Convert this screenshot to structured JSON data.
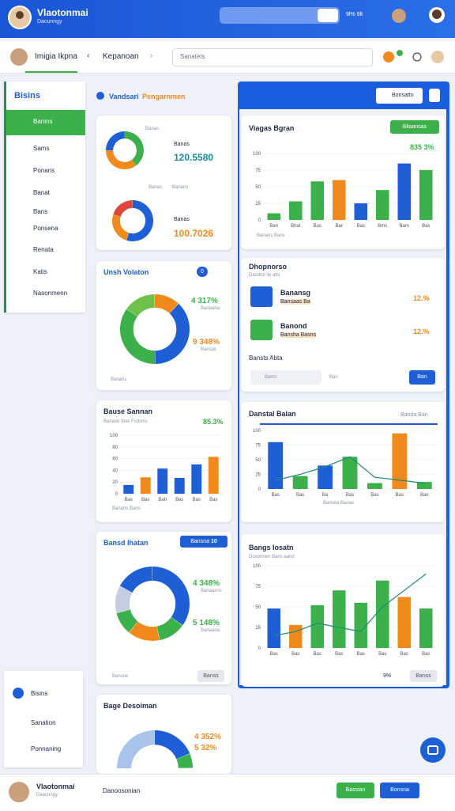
{
  "header": {
    "title": "Vlaotonmai",
    "subtitle": "Dacunngy",
    "search_button": "9l% 9lt"
  },
  "nav": {
    "user": "Imigia Ikpna",
    "breadcrumb": "Kepanoan",
    "search": "Sanatets"
  },
  "sidebar": {
    "title": "Bisins",
    "items": [
      "Banins",
      "Sams",
      "Ponaris",
      "Banat",
      "Bans",
      "Ponsena",
      "Renata",
      "Katis",
      "Nasonmenn"
    ],
    "bottom_items": [
      "Bisins",
      "Sanation",
      "Ponnaning"
    ]
  },
  "section": {
    "title": "Vandsari",
    "title_accent": "Pengarnmen",
    "search": "Bonsatto"
  },
  "cards": [
    {
      "caption": "Banas",
      "kpis": [
        {
          "label": "Banas",
          "value": "120.5580"
        },
        {
          "label": "Banas",
          "value": "100.7026"
        }
      ],
      "legend": [
        "Banas",
        "Banans"
      ],
      "charts": [
        {
          "type": "donut",
          "values": [
            40,
            35,
            25
          ],
          "colors": [
            "#3cb04a",
            "#f08a1c",
            "#1f5fd6"
          ]
        },
        {
          "type": "donut",
          "values": [
            55,
            25,
            20
          ],
          "colors": [
            "#1f5fd6",
            "#f08a1c",
            "#e0463a"
          ]
        }
      ]
    },
    {
      "title": "Unsh Volaton",
      "badge": "0",
      "kpis": [
        {
          "value": "4 317%",
          "label": "Banaana"
        },
        {
          "value": "9 348%",
          "label": "Bansas"
        }
      ],
      "legend": [
        "Banans"
      ],
      "charts": [
        {
          "type": "donut",
          "values": [
            12,
            38,
            35,
            15
          ],
          "colors": [
            "#f08a1c",
            "#1f5fd6",
            "#3cb04a",
            "#6cc24a"
          ]
        }
      ]
    },
    {
      "title": "Bause Sannan",
      "value": "85.3%",
      "subtitle": "Banasn Ibak Fsdsnis",
      "legend": [
        "Banans Bans"
      ],
      "charts": [
        {
          "type": "bar",
          "categories": [
            "Bas",
            "Bas",
            "Bah",
            "Bas",
            "Bas",
            "Bas"
          ],
          "values": [
            15,
            28,
            43,
            27,
            50,
            63
          ],
          "colors": [
            "#1f5fd6",
            "#f08a1c",
            "#1f5fd6",
            "#1f5fd6",
            "#1f5fd6",
            "#f08a1c"
          ],
          "ylim": [
            0,
            100
          ],
          "yticks": [
            0,
            20,
            40,
            60,
            80,
            100
          ]
        }
      ]
    },
    {
      "title": "Bansd Ihatan",
      "button": "Bansna",
      "button_count": "10",
      "kpis": [
        {
          "value": "4 348%",
          "label": "Banaasns"
        },
        {
          "value": "5 148%",
          "label": "Banaana"
        }
      ],
      "legend": [
        "Bansne"
      ],
      "action": "Banss",
      "charts": [
        {
          "type": "donut",
          "values": [
            35,
            12,
            14,
            10,
            12,
            17
          ],
          "colors": [
            "#1f5fd6",
            "#3cb04a",
            "#f08a1c",
            "#3cb04a",
            "#c5cde0",
            "#1f5fd6"
          ]
        }
      ]
    },
    {
      "title": "Bage Desoiman",
      "kpis": [
        {
          "value": "4 352%"
        },
        {
          "value": "5 32%"
        }
      ],
      "charts": [
        {
          "type": "gauge",
          "values": [
            40,
            30,
            10
          ],
          "colors": [
            "#a9c4ea",
            "#1f5fd6",
            "#3cb04a"
          ]
        }
      ]
    },
    {
      "title": "Viagas Bgran",
      "button": "Bliaansas",
      "value": "835 3%",
      "legend": [
        "Banans Bans"
      ],
      "charts": [
        {
          "type": "bar",
          "categories": [
            "Ban",
            "Bhat",
            "Bas",
            "Bar",
            "Bas",
            "Bms",
            "Bam",
            "Bas"
          ],
          "values": [
            10,
            28,
            58,
            60,
            25,
            45,
            85,
            75
          ],
          "colors": [
            "#3cb04a",
            "#3cb04a",
            "#3cb04a",
            "#f08a1c",
            "#1f5fd6",
            "#3cb04a",
            "#1f5fd6",
            "#3cb04a"
          ],
          "ylim": [
            0,
            100
          ],
          "yticks": [
            0,
            25,
            50,
            75,
            100
          ]
        }
      ]
    },
    {
      "title": "Dhopnorso",
      "subtitle": "Dasdnd lie atsi",
      "items": [
        {
          "name": "Banansg",
          "detail": "Bansaas Ba",
          "value": "12.%"
        },
        {
          "name": "Banond",
          "detail": "Bansha Basns",
          "value": "12.%"
        }
      ],
      "footer": "Bansts Abta",
      "controls": [
        "Bams",
        "Ban"
      ],
      "action": "Ban"
    },
    {
      "title": "Danstal Balan",
      "link": "Banda Ban",
      "xlabel": "Bansea Banas",
      "charts": [
        {
          "type": "bar",
          "categories": [
            "Bas",
            "Bas",
            "Ba",
            "Bas",
            "Bas",
            "Bas",
            "Ban"
          ],
          "values": [
            80,
            22,
            40,
            55,
            10,
            95,
            12
          ],
          "colors": [
            "#1f5fd6",
            "#3cb04a",
            "#1f5fd6",
            "#3cb04a",
            "#3cb04a",
            "#f08a1c",
            "#3cb04a"
          ],
          "line": [
            15,
            25,
            38,
            55,
            20,
            15,
            10
          ],
          "ylim": [
            0,
            100
          ],
          "yticks": [
            0,
            25,
            50,
            75,
            100
          ]
        }
      ]
    },
    {
      "title": "Bangs Iosatn",
      "subtitle": "Dosonnen Bans aand",
      "value": "9%",
      "action": "Banss",
      "charts": [
        {
          "type": "bar",
          "categories": [
            "Bas",
            "Bas",
            "Bas",
            "Bas",
            "Bas",
            "Bas",
            "Bas",
            "Bas"
          ],
          "values": [
            48,
            28,
            52,
            70,
            55,
            82,
            62,
            48
          ],
          "colors": [
            "#1f5fd6",
            "#f08a1c",
            "#3cb04a",
            "#3cb04a",
            "#3cb04a",
            "#3cb04a",
            "#f08a1c",
            "#3cb04a"
          ],
          "line": [
            15,
            20,
            30,
            25,
            20,
            50,
            70,
            90
          ],
          "ylim": [
            0,
            100
          ],
          "yticks": [
            0,
            25,
            50,
            75,
            100
          ]
        }
      ]
    }
  ],
  "footer": {
    "name": "Vlaotonmai",
    "subtitle": "Daacnngy",
    "label": "Danoosonian",
    "buttons": [
      "Bassian",
      "Bonsna"
    ]
  }
}
